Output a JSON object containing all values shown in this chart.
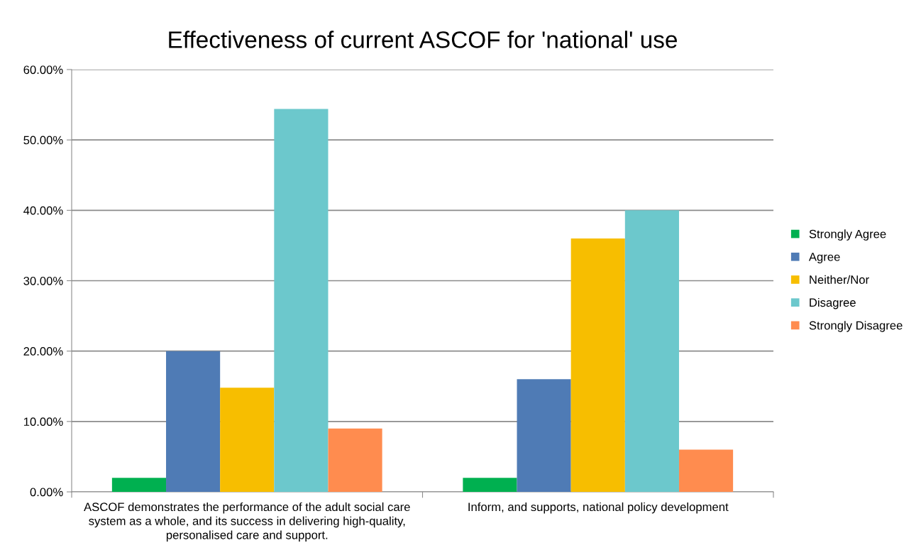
{
  "chart_data": {
    "type": "bar",
    "title": "Effectiveness of current ASCOF for 'national' use",
    "categories": [
      "ASCOF demonstrates the performance of the adult social care system as a whole, and its success in delivering high-quality, personalised care and support.",
      "Inform, and supports, national policy development"
    ],
    "series": [
      {
        "name": "Strongly Agree",
        "color": "#00b050",
        "values": [
          2,
          2
        ]
      },
      {
        "name": "Agree",
        "color": "#4f7bb5",
        "values": [
          20,
          16
        ]
      },
      {
        "name": "Neither/Nor",
        "color": "#f7be00",
        "values": [
          14.8,
          36
        ]
      },
      {
        "name": "Disagree",
        "color": "#6cc8cc",
        "values": [
          54.4,
          40
        ]
      },
      {
        "name": "Strongly Disagree",
        "color": "#ff8c4f",
        "values": [
          9,
          6
        ]
      }
    ],
    "ylim": [
      0,
      60
    ],
    "yticks": [
      {
        "value": 0,
        "label": "0.00%"
      },
      {
        "value": 10,
        "label": "10.00%"
      },
      {
        "value": 20,
        "label": "20.00%"
      },
      {
        "value": 30,
        "label": "30.00%"
      },
      {
        "value": 40,
        "label": "40.00%"
      },
      {
        "value": 50,
        "label": "50.00%"
      },
      {
        "value": 60,
        "label": "60.00%"
      }
    ],
    "grid": "y",
    "legend": "right"
  }
}
